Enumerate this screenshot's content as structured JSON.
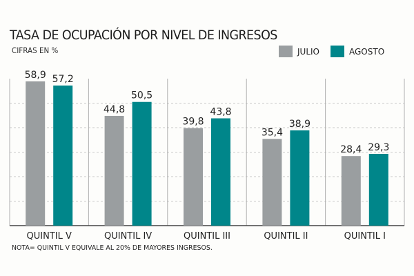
{
  "chart_data": {
    "type": "bar",
    "title": "TASA DE OCUPACIÓN POR NIVEL DE INGRESOS",
    "subtitle": "CIFRAS EN %",
    "categories": [
      "QUINTIL V",
      "QUINTIL IV",
      "QUINTIL III",
      "QUINTIL II",
      "QUINTIL I"
    ],
    "series": [
      {
        "name": "JULIO",
        "color": "#9a9ea0",
        "values": [
          58.9,
          44.8,
          39.8,
          35.4,
          28.4
        ],
        "labels": [
          "58,9",
          "44,8",
          "39,8",
          "35,4",
          "28,4"
        ]
      },
      {
        "name": "AGOSTO",
        "color": "#00868a",
        "values": [
          57.2,
          50.5,
          43.8,
          38.9,
          29.3
        ],
        "labels": [
          "57,2",
          "50,5",
          "43,8",
          "38,9",
          "29,3"
        ]
      }
    ],
    "ylim": [
      0,
      60
    ],
    "grid": "dashed-horizontal",
    "legend": "top-right",
    "note": "NOTA= QUINTIL V EQUIVALE AL 20% DE MAYORES INGRESOS."
  }
}
